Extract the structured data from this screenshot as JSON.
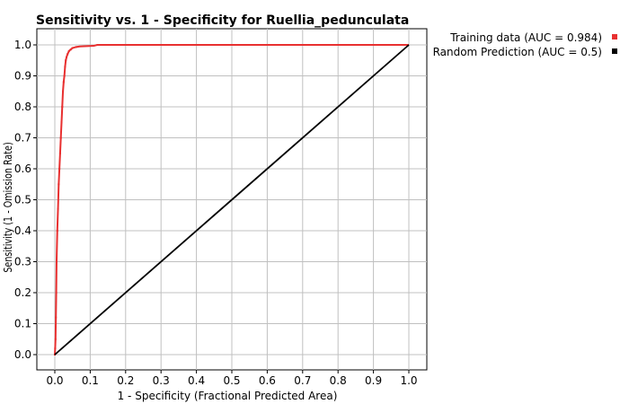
{
  "chart_data": {
    "type": "line",
    "title": "Sensitivity vs. 1 - Specificity for Ruellia_pedunculata",
    "xlabel": "1 - Specificity  (Fractional Predicted Area)",
    "ylabel": "Sensitivity  (1 - Omission Rate)",
    "xlim": [
      0.0,
      1.0
    ],
    "ylim": [
      0.0,
      1.0
    ],
    "x_ticks": [
      "0.0",
      "0.1",
      "0.2",
      "0.3",
      "0.4",
      "0.5",
      "0.6",
      "0.7",
      "0.8",
      "0.9",
      "1.0"
    ],
    "y_ticks": [
      "0.0",
      "0.1",
      "0.2",
      "0.3",
      "0.4",
      "0.5",
      "0.6",
      "0.7",
      "0.8",
      "0.9",
      "1.0"
    ],
    "grid": true,
    "legend_position": "top-right",
    "series": [
      {
        "name": "Training data (AUC = 0.984)",
        "color": "#e83030",
        "x": [
          0.0,
          0.001,
          0.002,
          0.003,
          0.004,
          0.005,
          0.007,
          0.009,
          0.011,
          0.013,
          0.015,
          0.017,
          0.019,
          0.021,
          0.023,
          0.025,
          0.027,
          0.029,
          0.031,
          0.033,
          0.036,
          0.04,
          0.045,
          0.05,
          0.06,
          0.07,
          0.09,
          0.11,
          0.12,
          0.2,
          0.4,
          0.6,
          0.8,
          1.0
        ],
        "y": [
          0.0,
          0.02,
          0.05,
          0.12,
          0.2,
          0.3,
          0.4,
          0.47,
          0.55,
          0.6,
          0.65,
          0.7,
          0.75,
          0.8,
          0.85,
          0.88,
          0.9,
          0.93,
          0.95,
          0.96,
          0.97,
          0.98,
          0.985,
          0.99,
          0.993,
          0.995,
          0.996,
          0.997,
          1.0,
          1.0,
          1.0,
          1.0,
          1.0,
          1.0
        ]
      },
      {
        "name": "Random Prediction (AUC = 0.5)",
        "color": "#000000",
        "x": [
          0.0,
          1.0
        ],
        "y": [
          0.0,
          1.0
        ]
      }
    ]
  }
}
